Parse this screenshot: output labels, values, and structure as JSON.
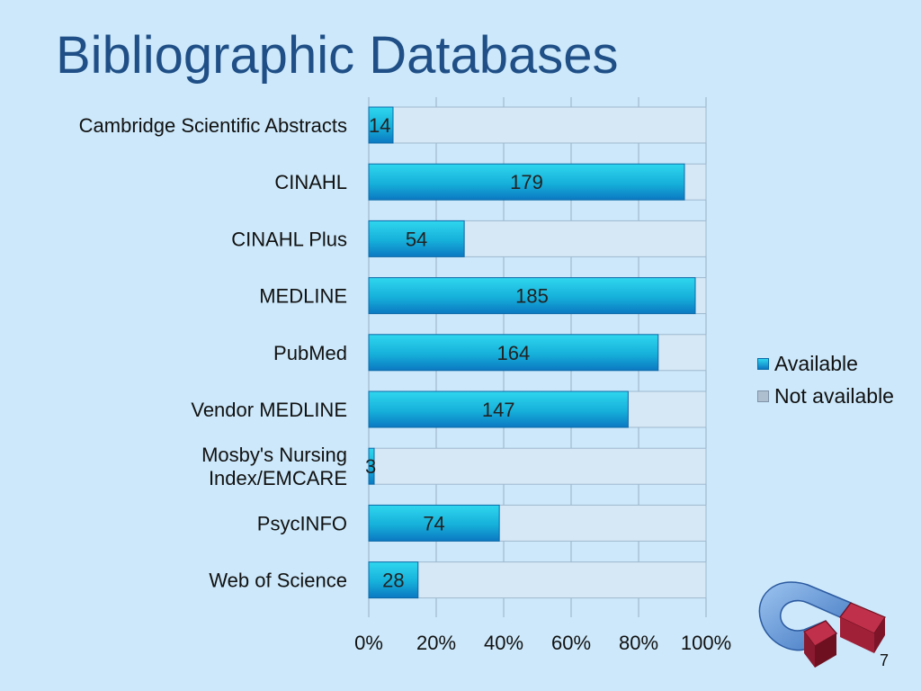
{
  "slide": {
    "title": "Bibliographic Databases",
    "page_number": "7"
  },
  "colors": {
    "background": "#cce8fa",
    "title": "#1f4f86",
    "available": "#19b6de",
    "not_available": "#d6e8f5",
    "magnet_blue": "#5b8fd0",
    "magnet_red": "#b02040"
  },
  "logo": {
    "icon": "magnet-icon"
  },
  "chart_data": {
    "type": "bar",
    "orientation": "horizontal",
    "stacked": "100%",
    "categories": [
      "Cambridge Scientific Abstracts",
      "CINAHL",
      "CINAHL Plus",
      "MEDLINE",
      "PubMed",
      "Vendor MEDLINE",
      "Mosby's Nursing Index/EMCARE",
      "PsycINFO",
      "Web of Science"
    ],
    "category_lines": [
      [
        "Cambridge Scientific Abstracts"
      ],
      [
        "CINAHL"
      ],
      [
        "CINAHL Plus"
      ],
      [
        "MEDLINE"
      ],
      [
        "PubMed"
      ],
      [
        "Vendor MEDLINE"
      ],
      [
        "Mosby's Nursing",
        "Index/EMCARE"
      ],
      [
        "PsycINFO"
      ],
      [
        "Web of Science"
      ]
    ],
    "series": [
      {
        "name": "Available",
        "labels": [
          "14",
          "179",
          "54",
          "185",
          "164",
          "147",
          "3",
          "74",
          "28"
        ],
        "percent": [
          7.2,
          93.6,
          28.3,
          96.8,
          85.8,
          76.9,
          1.6,
          38.7,
          14.6
        ]
      },
      {
        "name": "Not available",
        "percent": [
          92.8,
          6.4,
          71.7,
          3.2,
          14.2,
          23.1,
          98.4,
          61.3,
          85.4
        ]
      }
    ],
    "x_ticks": [
      "0%",
      "20%",
      "40%",
      "60%",
      "80%",
      "100%"
    ],
    "xlim": [
      0,
      100
    ],
    "grid": true,
    "legend_position": "right"
  }
}
